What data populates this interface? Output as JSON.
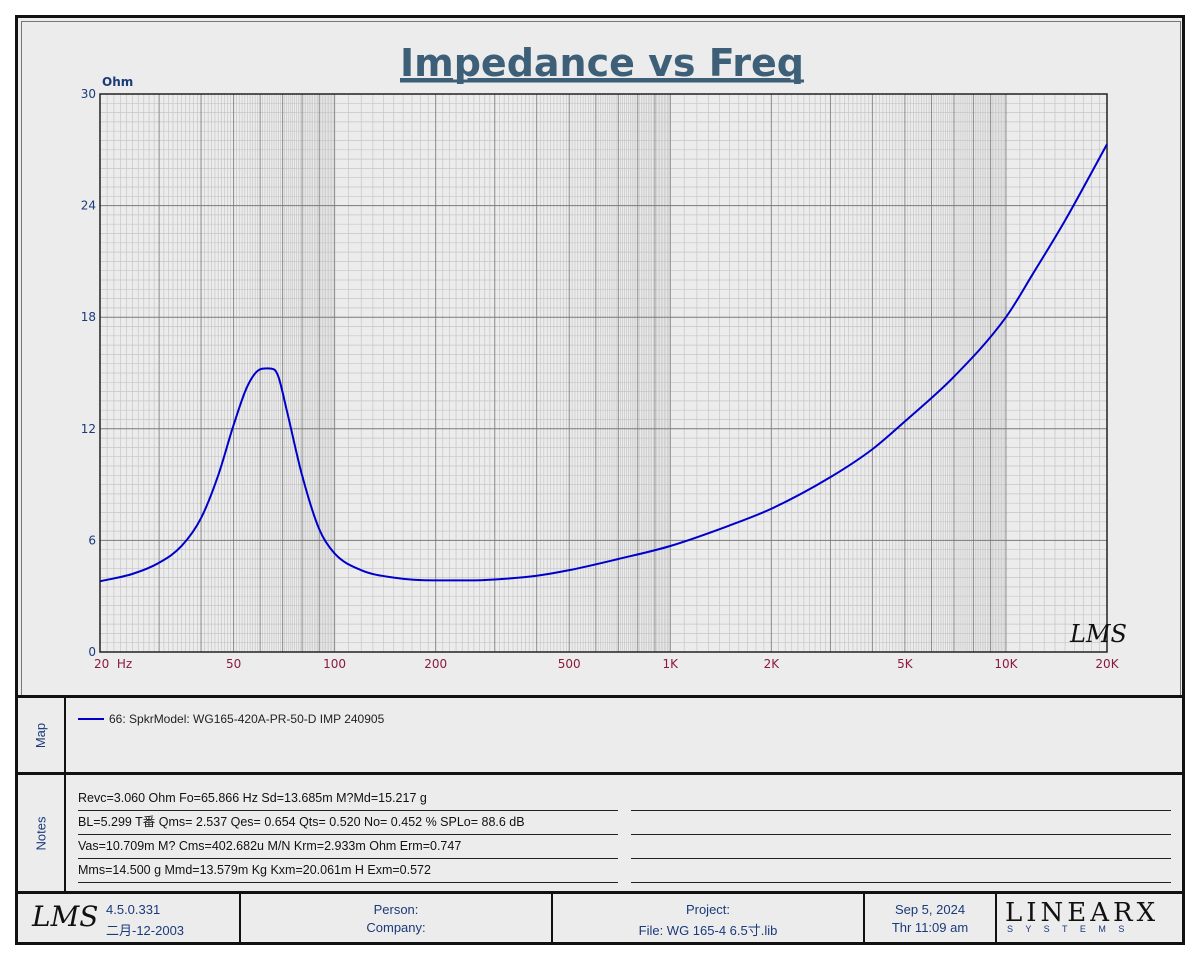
{
  "chart_data": {
    "type": "line",
    "title": "Impedance vs Freq",
    "ylabel": "Ohm",
    "xlabel": "",
    "xscale": "log",
    "xlim": [
      20,
      20000
    ],
    "ylim": [
      0,
      30
    ],
    "grid": true,
    "x_ticks": [
      {
        "value": 20,
        "label": "20  Hz"
      },
      {
        "value": 50,
        "label": "50"
      },
      {
        "value": 100,
        "label": "100"
      },
      {
        "value": 200,
        "label": "200"
      },
      {
        "value": 500,
        "label": "500"
      },
      {
        "value": 1000,
        "label": "1K"
      },
      {
        "value": 2000,
        "label": "2K"
      },
      {
        "value": 5000,
        "label": "5K"
      },
      {
        "value": 10000,
        "label": "10K"
      },
      {
        "value": 20000,
        "label": "20K"
      }
    ],
    "y_ticks": [
      0,
      6,
      12,
      18,
      24,
      30
    ],
    "series": [
      {
        "name": "66: SpkrModel: WG165-420A-PR-50-D IMP 240905",
        "color": "#0000cc",
        "x": [
          20,
          25,
          30,
          35,
          40,
          45,
          50,
          55,
          60,
          63,
          65.9,
          68,
          72,
          80,
          90,
          100,
          120,
          150,
          200,
          250,
          300,
          400,
          500,
          700,
          1000,
          1500,
          2000,
          3000,
          4000,
          5000,
          7000,
          10000,
          12000,
          15000,
          20000
        ],
        "y": [
          3.8,
          4.2,
          4.8,
          5.7,
          7.2,
          9.5,
          12.2,
          14.3,
          15.2,
          15.25,
          15.2,
          14.8,
          13.0,
          9.5,
          6.6,
          5.3,
          4.4,
          4.0,
          3.85,
          3.85,
          3.9,
          4.1,
          4.4,
          5.0,
          5.7,
          6.8,
          7.7,
          9.4,
          10.9,
          12.4,
          14.8,
          18.0,
          20.3,
          23.2,
          27.3
        ]
      }
    ]
  },
  "map": {
    "tab_label": "Map"
  },
  "notes": {
    "tab_label": "Notes",
    "lines": [
      "Revc=3.060 Ohm  Fo=65.866 Hz  Sd=13.685m M?Md=15.217 g",
      "BL=5.299 T番  Qms= 2.537  Qes= 0.654  Qts= 0.520  No= 0.452 %  SPLo= 88.6 dB",
      "Vas=10.709m M? Cms=402.682u M/N  Krm=2.933m Ohm  Erm=0.747",
      "Mms=14.500 g  Mmd=13.579m Kg  Kxm=20.061m H  Exm=0.572"
    ]
  },
  "watermark": "LMS",
  "footer": {
    "logo": "LMS",
    "version": "4.5.0.331",
    "date_built": "二月-12-2003",
    "person_label": "Person:",
    "company_label": "Company:",
    "project_label": "Project:",
    "file_label": "File: WG 165-4 6.5寸.lib",
    "date": "Sep  5, 2024",
    "time": "Thr 11:09 am",
    "brand": "LINEARX",
    "brand_sub": "S Y S T E M S"
  }
}
